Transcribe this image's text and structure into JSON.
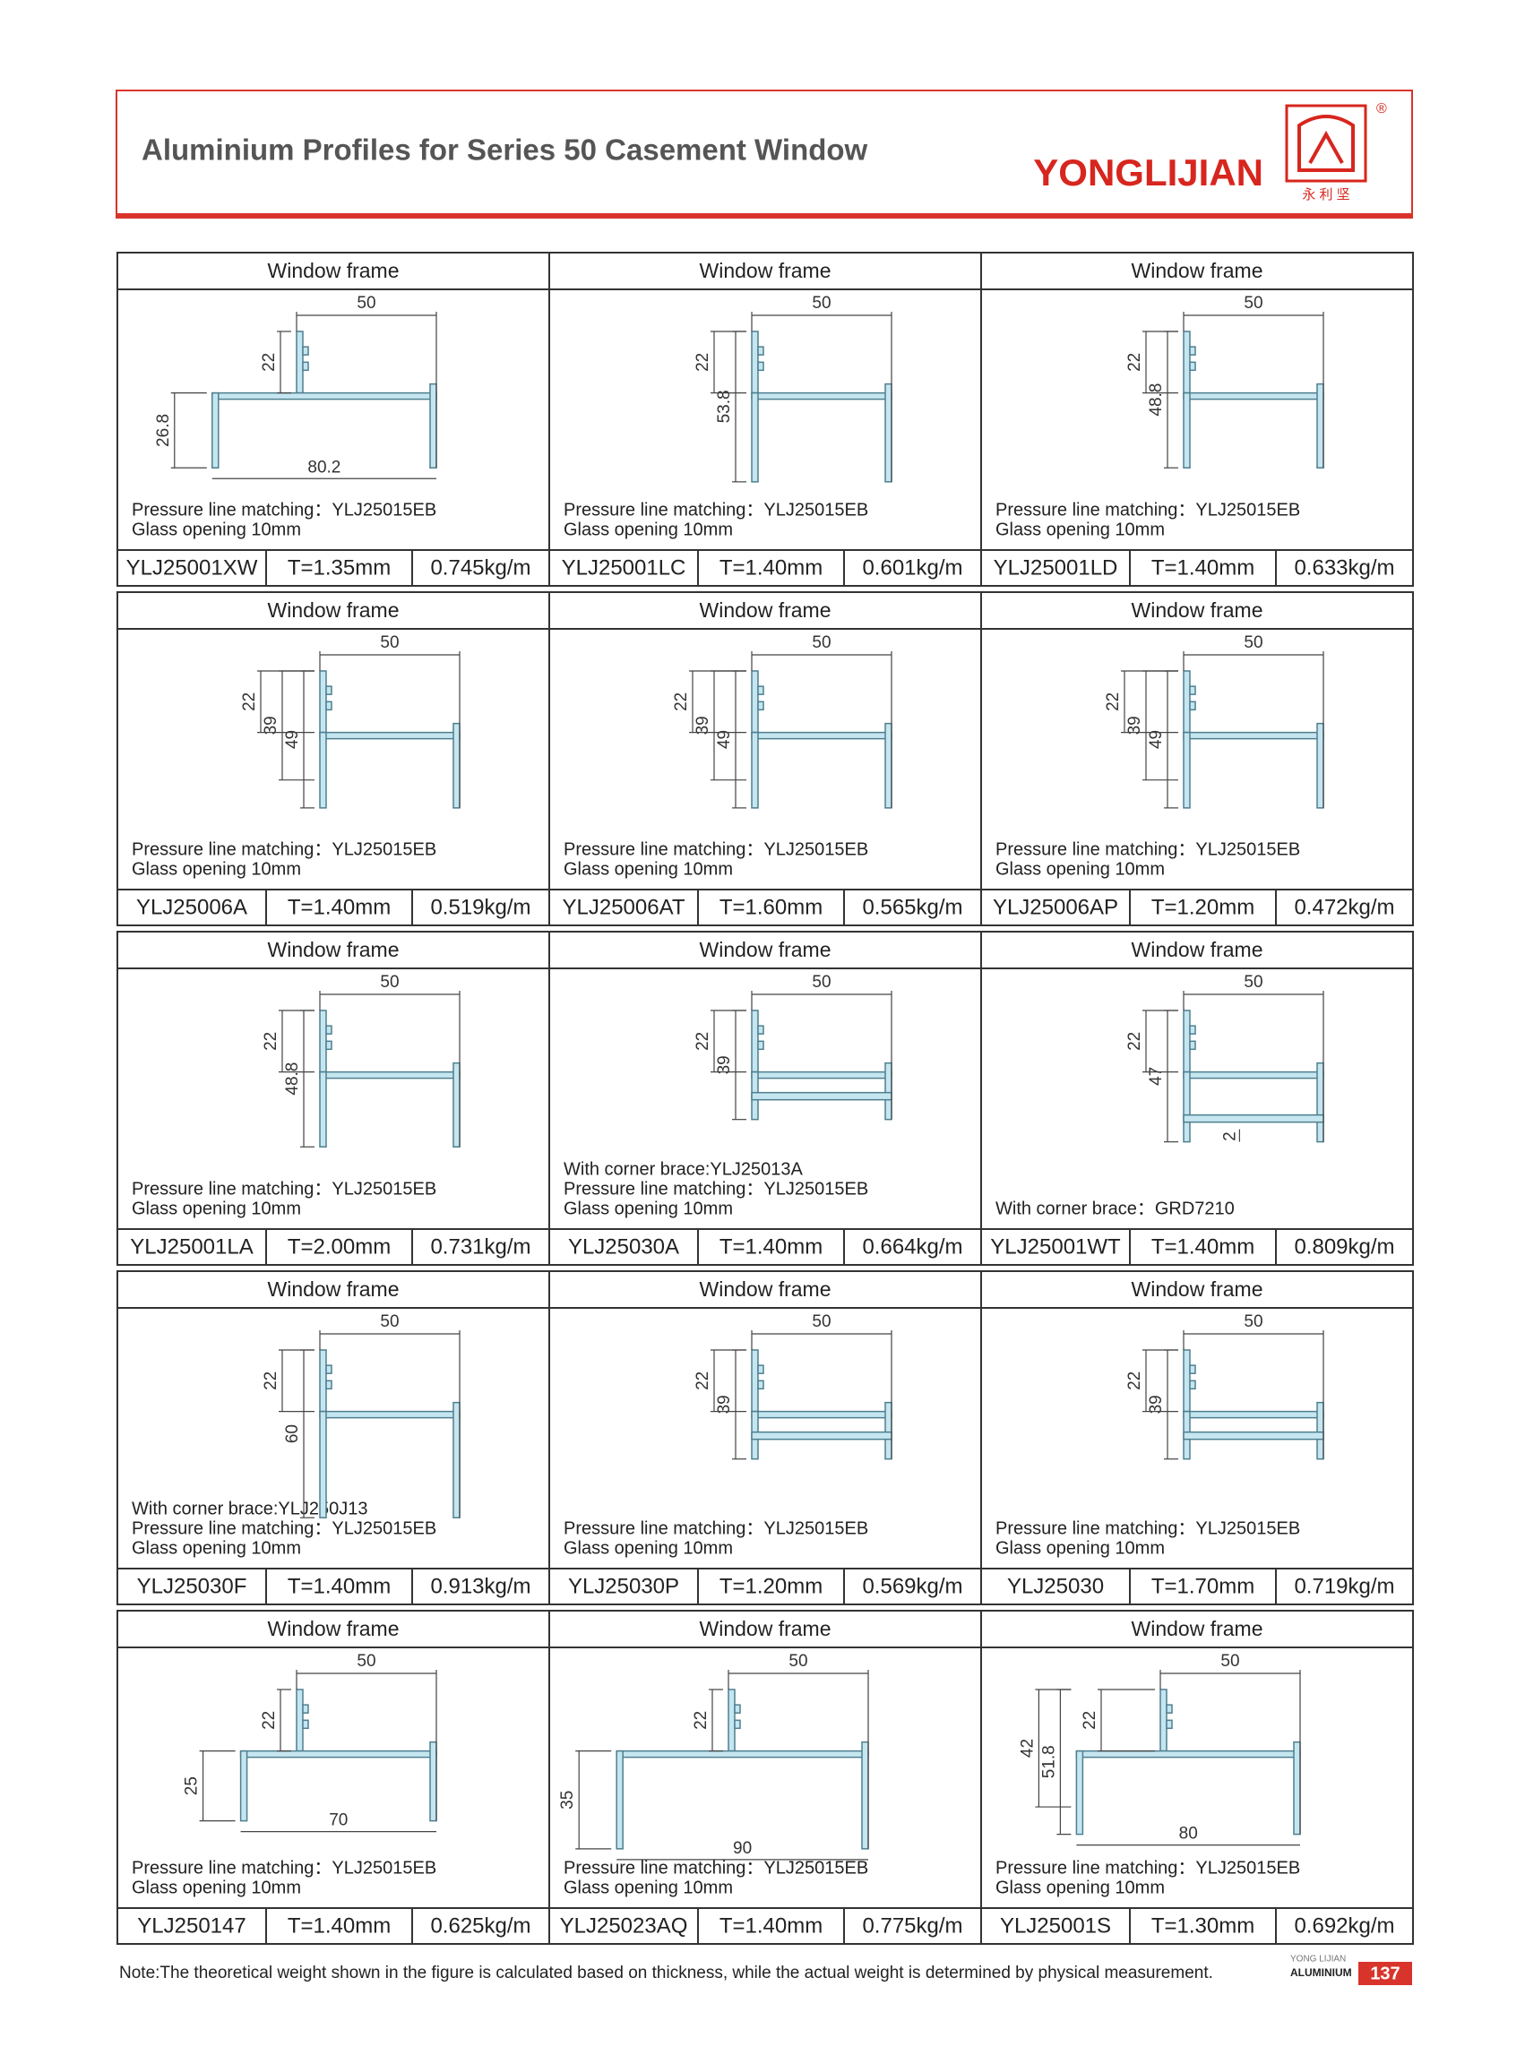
{
  "header": {
    "title": "Aluminium Profiles for Series 50 Casement Window",
    "brand": "YONGLIJIAN",
    "registered": "®",
    "brand_cn": "永 利 坚"
  },
  "cells": [
    {
      "title": "Window frame",
      "dims": {
        "top": "50",
        "heights": [
          "22",
          "26.8"
        ],
        "bottom": "80.2"
      },
      "notes": [
        "Pressure line matching：YLJ25015EB",
        "Glass opening 10mm"
      ],
      "code": "YLJ25001XW",
      "thickness": "T=1.35mm",
      "weight": "0.745kg/m"
    },
    {
      "title": "Window frame",
      "dims": {
        "top": "50",
        "heights": [
          "53.8",
          "22"
        ]
      },
      "notes": [
        "Pressure line matching：YLJ25015EB",
        "Glass opening 10mm"
      ],
      "code": "YLJ25001LC",
      "thickness": "T=1.40mm",
      "weight": "0.601kg/m"
    },
    {
      "title": "Window frame",
      "dims": {
        "top": "50",
        "heights": [
          "48.8",
          "22"
        ]
      },
      "notes": [
        "Pressure line matching：YLJ25015EB",
        "Glass opening 10mm"
      ],
      "code": "YLJ25001LD",
      "thickness": "T=1.40mm",
      "weight": "0.633kg/m"
    },
    {
      "title": "Window frame",
      "dims": {
        "top": "50",
        "heights": [
          "49",
          "39",
          "22"
        ]
      },
      "notes": [
        "Pressure line matching：YLJ25015EB",
        "Glass opening 10mm"
      ],
      "code": "YLJ25006A",
      "thickness": "T=1.40mm",
      "weight": "0.519kg/m"
    },
    {
      "title": "Window frame",
      "dims": {
        "top": "50",
        "heights": [
          "49",
          "39",
          "22"
        ]
      },
      "notes": [
        "Pressure line matching：YLJ25015EB",
        "Glass opening 10mm"
      ],
      "code": "YLJ25006AT",
      "thickness": "T=1.60mm",
      "weight": "0.565kg/m"
    },
    {
      "title": "Window frame",
      "dims": {
        "top": "50",
        "heights": [
          "49",
          "39",
          "22"
        ]
      },
      "notes": [
        "Pressure line matching：YLJ25015EB",
        "Glass opening 10mm"
      ],
      "code": "YLJ25006AP",
      "thickness": "T=1.20mm",
      "weight": "0.472kg/m"
    },
    {
      "title": "Window frame",
      "dims": {
        "top": "50",
        "heights": [
          "48.8",
          "22"
        ]
      },
      "notes": [
        "Pressure line matching：YLJ25015EB",
        "Glass opening 10mm"
      ],
      "code": "YLJ25001LA",
      "thickness": "T=2.00mm",
      "weight": "0.731kg/m"
    },
    {
      "title": "Window frame",
      "dims": {
        "top": "50",
        "heights": [
          "39",
          "22"
        ]
      },
      "notes": [
        "With corner brace:YLJ25013A",
        "Pressure line matching：YLJ25015EB",
        "Glass opening 10mm"
      ],
      "code": "YLJ25030A",
      "thickness": "T=1.40mm",
      "weight": "0.664kg/m"
    },
    {
      "title": "Window frame",
      "dims": {
        "top": "50",
        "heights": [
          "47",
          "22"
        ],
        "inner": "2"
      },
      "notes": [
        "With corner brace：GRD7210"
      ],
      "code": "YLJ25001WT",
      "thickness": "T=1.40mm",
      "weight": "0.809kg/m"
    },
    {
      "title": "Window frame",
      "dims": {
        "top": "50",
        "heights": [
          "60",
          "22"
        ]
      },
      "notes": [
        "With corner brace:YLJ250J13",
        "Pressure line matching：YLJ25015EB",
        "Glass opening 10mm"
      ],
      "code": "YLJ25030F",
      "thickness": "T=1.40mm",
      "weight": "0.913kg/m"
    },
    {
      "title": "Window frame",
      "dims": {
        "top": "50",
        "heights": [
          "39",
          "22"
        ]
      },
      "notes": [
        "Pressure line matching：YLJ25015EB",
        "Glass opening 10mm"
      ],
      "code": "YLJ25030P",
      "thickness": "T=1.20mm",
      "weight": "0.569kg/m"
    },
    {
      "title": "Window frame",
      "dims": {
        "top": "50",
        "heights": [
          "39",
          "22"
        ]
      },
      "notes": [
        "Pressure line matching：YLJ25015EB",
        "Glass opening 10mm"
      ],
      "code": "YLJ25030",
      "thickness": "T=1.70mm",
      "weight": "0.719kg/m"
    },
    {
      "title": "Window frame",
      "dims": {
        "top": "50",
        "heights": [
          "22",
          "25"
        ],
        "bottom": "70"
      },
      "notes": [
        "Pressure line matching：YLJ25015EB",
        "Glass opening 10mm"
      ],
      "code": "YLJ250147",
      "thickness": "T=1.40mm",
      "weight": "0.625kg/m"
    },
    {
      "title": "Window frame",
      "dims": {
        "top": "50",
        "heights": [
          "22",
          "35"
        ],
        "bottom": "90"
      },
      "notes": [
        "Pressure line matching：YLJ25015EB",
        "Glass opening 10mm"
      ],
      "code": "YLJ25023AQ",
      "thickness": "T=1.40mm",
      "weight": "0.775kg/m"
    },
    {
      "title": "Window frame",
      "dims": {
        "top": "50",
        "heights": [
          "51.8",
          "42",
          "22"
        ],
        "bottom": "80"
      },
      "notes": [
        "Pressure line matching：YLJ25015EB",
        "Glass opening 10mm"
      ],
      "code": "YLJ25001S",
      "thickness": "T=1.30mm",
      "weight": "0.692kg/m"
    }
  ],
  "footer": {
    "note": "Note:The theoretical weight shown in the figure is calculated based on thickness, while the actual weight is determined by physical measurement.",
    "brand_small": "YONG LIJIAN",
    "brand_word": "ALUMINIUM",
    "page": "137"
  }
}
